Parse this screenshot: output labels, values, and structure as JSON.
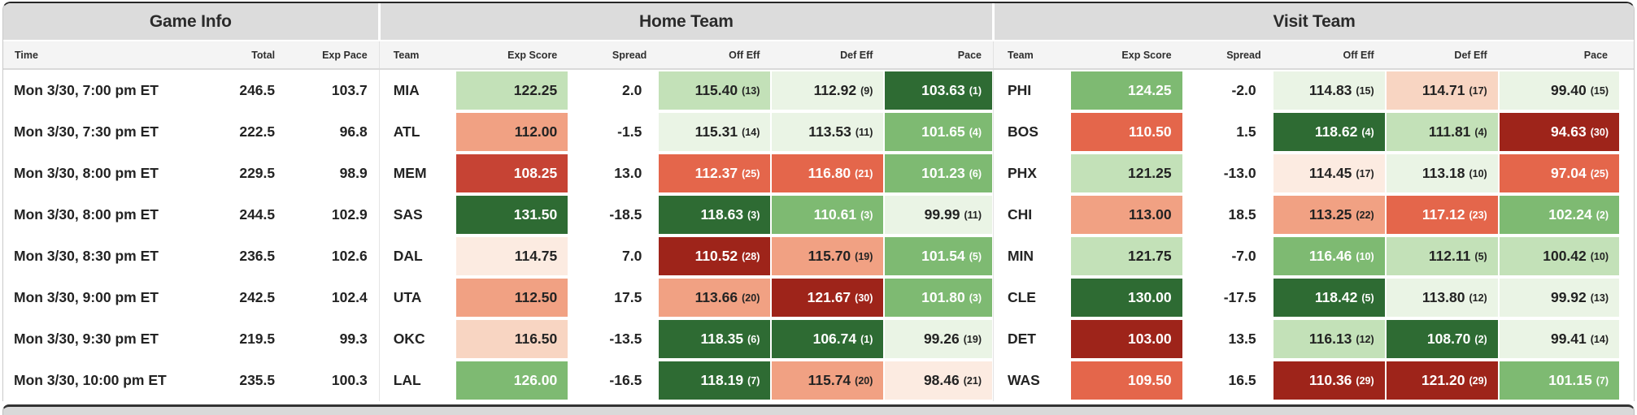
{
  "palette": {
    "g1": "#eaf4e5",
    "g2": "#c3e1b8",
    "g3": "#7eba72",
    "g4": "#2e6b33",
    "r1": "#fcebe1",
    "r2": "#f8d5c2",
    "r3": "#f1a183",
    "r4": "#e4664b",
    "r5": "#c64334",
    "r6": "#9e241a"
  },
  "header": {
    "groups": [
      {
        "label": "Game Info"
      },
      {
        "label": "Home Team"
      },
      {
        "label": "Visit Team"
      }
    ],
    "columns": [
      "Time",
      "Total",
      "Exp Pace",
      "Team",
      "Exp Score",
      "Spread",
      "Off Eff",
      "Def Eff",
      "Pace",
      "Team",
      "Exp Score",
      "Spread",
      "Off Eff",
      "Def Eff",
      "Pace"
    ]
  },
  "rows": [
    {
      "time": "Mon 3/30, 7:00 pm ET",
      "total": "246.5",
      "exp_pace": "103.7",
      "home": {
        "team": "MIA",
        "exp_score": {
          "v": "122.25",
          "c": "g2"
        },
        "spread": "2.0",
        "off_eff": {
          "v": "115.40",
          "r": 13,
          "c": "g2"
        },
        "def_eff": {
          "v": "112.92",
          "r": 9,
          "c": "g1"
        },
        "pace": {
          "v": "103.63",
          "r": 1,
          "c": "g4"
        }
      },
      "visit": {
        "team": "PHI",
        "exp_score": {
          "v": "124.25",
          "c": "g3"
        },
        "spread": "-2.0",
        "off_eff": {
          "v": "114.83",
          "r": 15,
          "c": "g1"
        },
        "def_eff": {
          "v": "114.71",
          "r": 17,
          "c": "r2"
        },
        "pace": {
          "v": "99.40",
          "r": 15,
          "c": "g1"
        }
      }
    },
    {
      "time": "Mon 3/30, 7:30 pm ET",
      "total": "222.5",
      "exp_pace": "96.8",
      "home": {
        "team": "ATL",
        "exp_score": {
          "v": "112.00",
          "c": "r3"
        },
        "spread": "-1.5",
        "off_eff": {
          "v": "115.31",
          "r": 14,
          "c": "g1"
        },
        "def_eff": {
          "v": "113.53",
          "r": 11,
          "c": "g1"
        },
        "pace": {
          "v": "101.65",
          "r": 4,
          "c": "g3"
        }
      },
      "visit": {
        "team": "BOS",
        "exp_score": {
          "v": "110.50",
          "c": "r4"
        },
        "spread": "1.5",
        "off_eff": {
          "v": "118.62",
          "r": 4,
          "c": "g4"
        },
        "def_eff": {
          "v": "111.81",
          "r": 4,
          "c": "g2"
        },
        "pace": {
          "v": "94.63",
          "r": 30,
          "c": "r6"
        }
      }
    },
    {
      "time": "Mon 3/30, 8:00 pm ET",
      "total": "229.5",
      "exp_pace": "98.9",
      "home": {
        "team": "MEM",
        "exp_score": {
          "v": "108.25",
          "c": "r5"
        },
        "spread": "13.0",
        "off_eff": {
          "v": "112.37",
          "r": 25,
          "c": "r4"
        },
        "def_eff": {
          "v": "116.80",
          "r": 21,
          "c": "r4"
        },
        "pace": {
          "v": "101.23",
          "r": 6,
          "c": "g3"
        }
      },
      "visit": {
        "team": "PHX",
        "exp_score": {
          "v": "121.25",
          "c": "g2"
        },
        "spread": "-13.0",
        "off_eff": {
          "v": "114.45",
          "r": 17,
          "c": "r1"
        },
        "def_eff": {
          "v": "113.18",
          "r": 10,
          "c": "g1"
        },
        "pace": {
          "v": "97.04",
          "r": 25,
          "c": "r4"
        }
      }
    },
    {
      "time": "Mon 3/30, 8:00 pm ET",
      "total": "244.5",
      "exp_pace": "102.9",
      "home": {
        "team": "SAS",
        "exp_score": {
          "v": "131.50",
          "c": "g4"
        },
        "spread": "-18.5",
        "off_eff": {
          "v": "118.63",
          "r": 3,
          "c": "g4"
        },
        "def_eff": {
          "v": "110.61",
          "r": 3,
          "c": "g3"
        },
        "pace": {
          "v": "99.99",
          "r": 11,
          "c": "g1"
        }
      },
      "visit": {
        "team": "CHI",
        "exp_score": {
          "v": "113.00",
          "c": "r3"
        },
        "spread": "18.5",
        "off_eff": {
          "v": "113.25",
          "r": 22,
          "c": "r3"
        },
        "def_eff": {
          "v": "117.12",
          "r": 23,
          "c": "r4"
        },
        "pace": {
          "v": "102.24",
          "r": 2,
          "c": "g3"
        }
      }
    },
    {
      "time": "Mon 3/30, 8:30 pm ET",
      "total": "236.5",
      "exp_pace": "102.6",
      "home": {
        "team": "DAL",
        "exp_score": {
          "v": "114.75",
          "c": "r1"
        },
        "spread": "7.0",
        "off_eff": {
          "v": "110.52",
          "r": 28,
          "c": "r6"
        },
        "def_eff": {
          "v": "115.70",
          "r": 19,
          "c": "r3"
        },
        "pace": {
          "v": "101.54",
          "r": 5,
          "c": "g3"
        }
      },
      "visit": {
        "team": "MIN",
        "exp_score": {
          "v": "121.75",
          "c": "g2"
        },
        "spread": "-7.0",
        "off_eff": {
          "v": "116.46",
          "r": 10,
          "c": "g3"
        },
        "def_eff": {
          "v": "112.11",
          "r": 5,
          "c": "g2"
        },
        "pace": {
          "v": "100.42",
          "r": 10,
          "c": "g2"
        }
      }
    },
    {
      "time": "Mon 3/30, 9:00 pm ET",
      "total": "242.5",
      "exp_pace": "102.4",
      "home": {
        "team": "UTA",
        "exp_score": {
          "v": "112.50",
          "c": "r3"
        },
        "spread": "17.5",
        "off_eff": {
          "v": "113.66",
          "r": 20,
          "c": "r3"
        },
        "def_eff": {
          "v": "121.67",
          "r": 30,
          "c": "r6"
        },
        "pace": {
          "v": "101.80",
          "r": 3,
          "c": "g3"
        }
      },
      "visit": {
        "team": "CLE",
        "exp_score": {
          "v": "130.00",
          "c": "g4"
        },
        "spread": "-17.5",
        "off_eff": {
          "v": "118.42",
          "r": 5,
          "c": "g4"
        },
        "def_eff": {
          "v": "113.80",
          "r": 12,
          "c": "g1"
        },
        "pace": {
          "v": "99.92",
          "r": 13,
          "c": "g1"
        }
      }
    },
    {
      "time": "Mon 3/30, 9:30 pm ET",
      "total": "219.5",
      "exp_pace": "99.3",
      "home": {
        "team": "OKC",
        "exp_score": {
          "v": "116.50",
          "c": "r2"
        },
        "spread": "-13.5",
        "off_eff": {
          "v": "118.35",
          "r": 6,
          "c": "g4"
        },
        "def_eff": {
          "v": "106.74",
          "r": 1,
          "c": "g4"
        },
        "pace": {
          "v": "99.26",
          "r": 19,
          "c": "g1"
        }
      },
      "visit": {
        "team": "DET",
        "exp_score": {
          "v": "103.00",
          "c": "r6"
        },
        "spread": "13.5",
        "off_eff": {
          "v": "116.13",
          "r": 12,
          "c": "g2"
        },
        "def_eff": {
          "v": "108.70",
          "r": 2,
          "c": "g4"
        },
        "pace": {
          "v": "99.41",
          "r": 14,
          "c": "g1"
        }
      }
    },
    {
      "time": "Mon 3/30, 10:00 pm ET",
      "total": "235.5",
      "exp_pace": "100.3",
      "home": {
        "team": "LAL",
        "exp_score": {
          "v": "126.00",
          "c": "g3"
        },
        "spread": "-16.5",
        "off_eff": {
          "v": "118.19",
          "r": 7,
          "c": "g4"
        },
        "def_eff": {
          "v": "115.74",
          "r": 20,
          "c": "r3"
        },
        "pace": {
          "v": "98.46",
          "r": 21,
          "c": "r1"
        }
      },
      "visit": {
        "team": "WAS",
        "exp_score": {
          "v": "109.50",
          "c": "r4"
        },
        "spread": "16.5",
        "off_eff": {
          "v": "110.36",
          "r": 29,
          "c": "r6"
        },
        "def_eff": {
          "v": "121.20",
          "r": 29,
          "c": "r6"
        },
        "pace": {
          "v": "101.15",
          "r": 7,
          "c": "g3"
        }
      }
    }
  ]
}
